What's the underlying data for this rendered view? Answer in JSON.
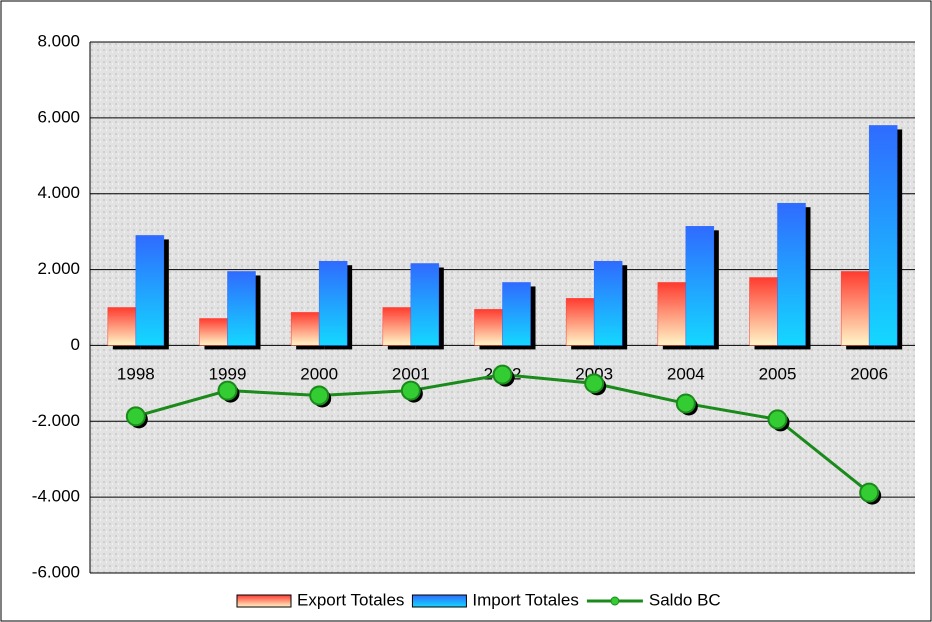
{
  "chart_data": {
    "type": "bar",
    "categories": [
      "1998",
      "1999",
      "2000",
      "2001",
      "2002",
      "2003",
      "2004",
      "2005",
      "2006"
    ],
    "series": [
      {
        "name": "Export Totales",
        "color": "#ff3b2f",
        "values": [
          1000,
          710,
          870,
          1000,
          950,
          1240,
          1660,
          1790,
          1950
        ]
      },
      {
        "name": "Import Totales",
        "color": "#2f6bff",
        "values": [
          2900,
          1950,
          2220,
          2160,
          1660,
          2220,
          3140,
          3750,
          5800
        ]
      },
      {
        "name": "Saldo BC",
        "color": "#1a8a1a",
        "type": "line",
        "values": [
          -1870,
          -1190,
          -1320,
          -1190,
          -770,
          -1000,
          -1530,
          -1950,
          -3880
        ]
      }
    ],
    "ylim": [
      -6000,
      8000
    ],
    "yticks": [
      {
        "value": -6000,
        "label": "-6.000"
      },
      {
        "value": -4000,
        "label": "-4.000"
      },
      {
        "value": -2000,
        "label": "-2.000"
      },
      0,
      {
        "value": 2000,
        "label": "2.000"
      },
      {
        "value": 4000,
        "label": "4.000"
      },
      {
        "value": 6000,
        "label": "6.000"
      },
      {
        "value": 8000,
        "label": "8.000"
      }
    ],
    "grid": true,
    "legend": "bottom"
  }
}
